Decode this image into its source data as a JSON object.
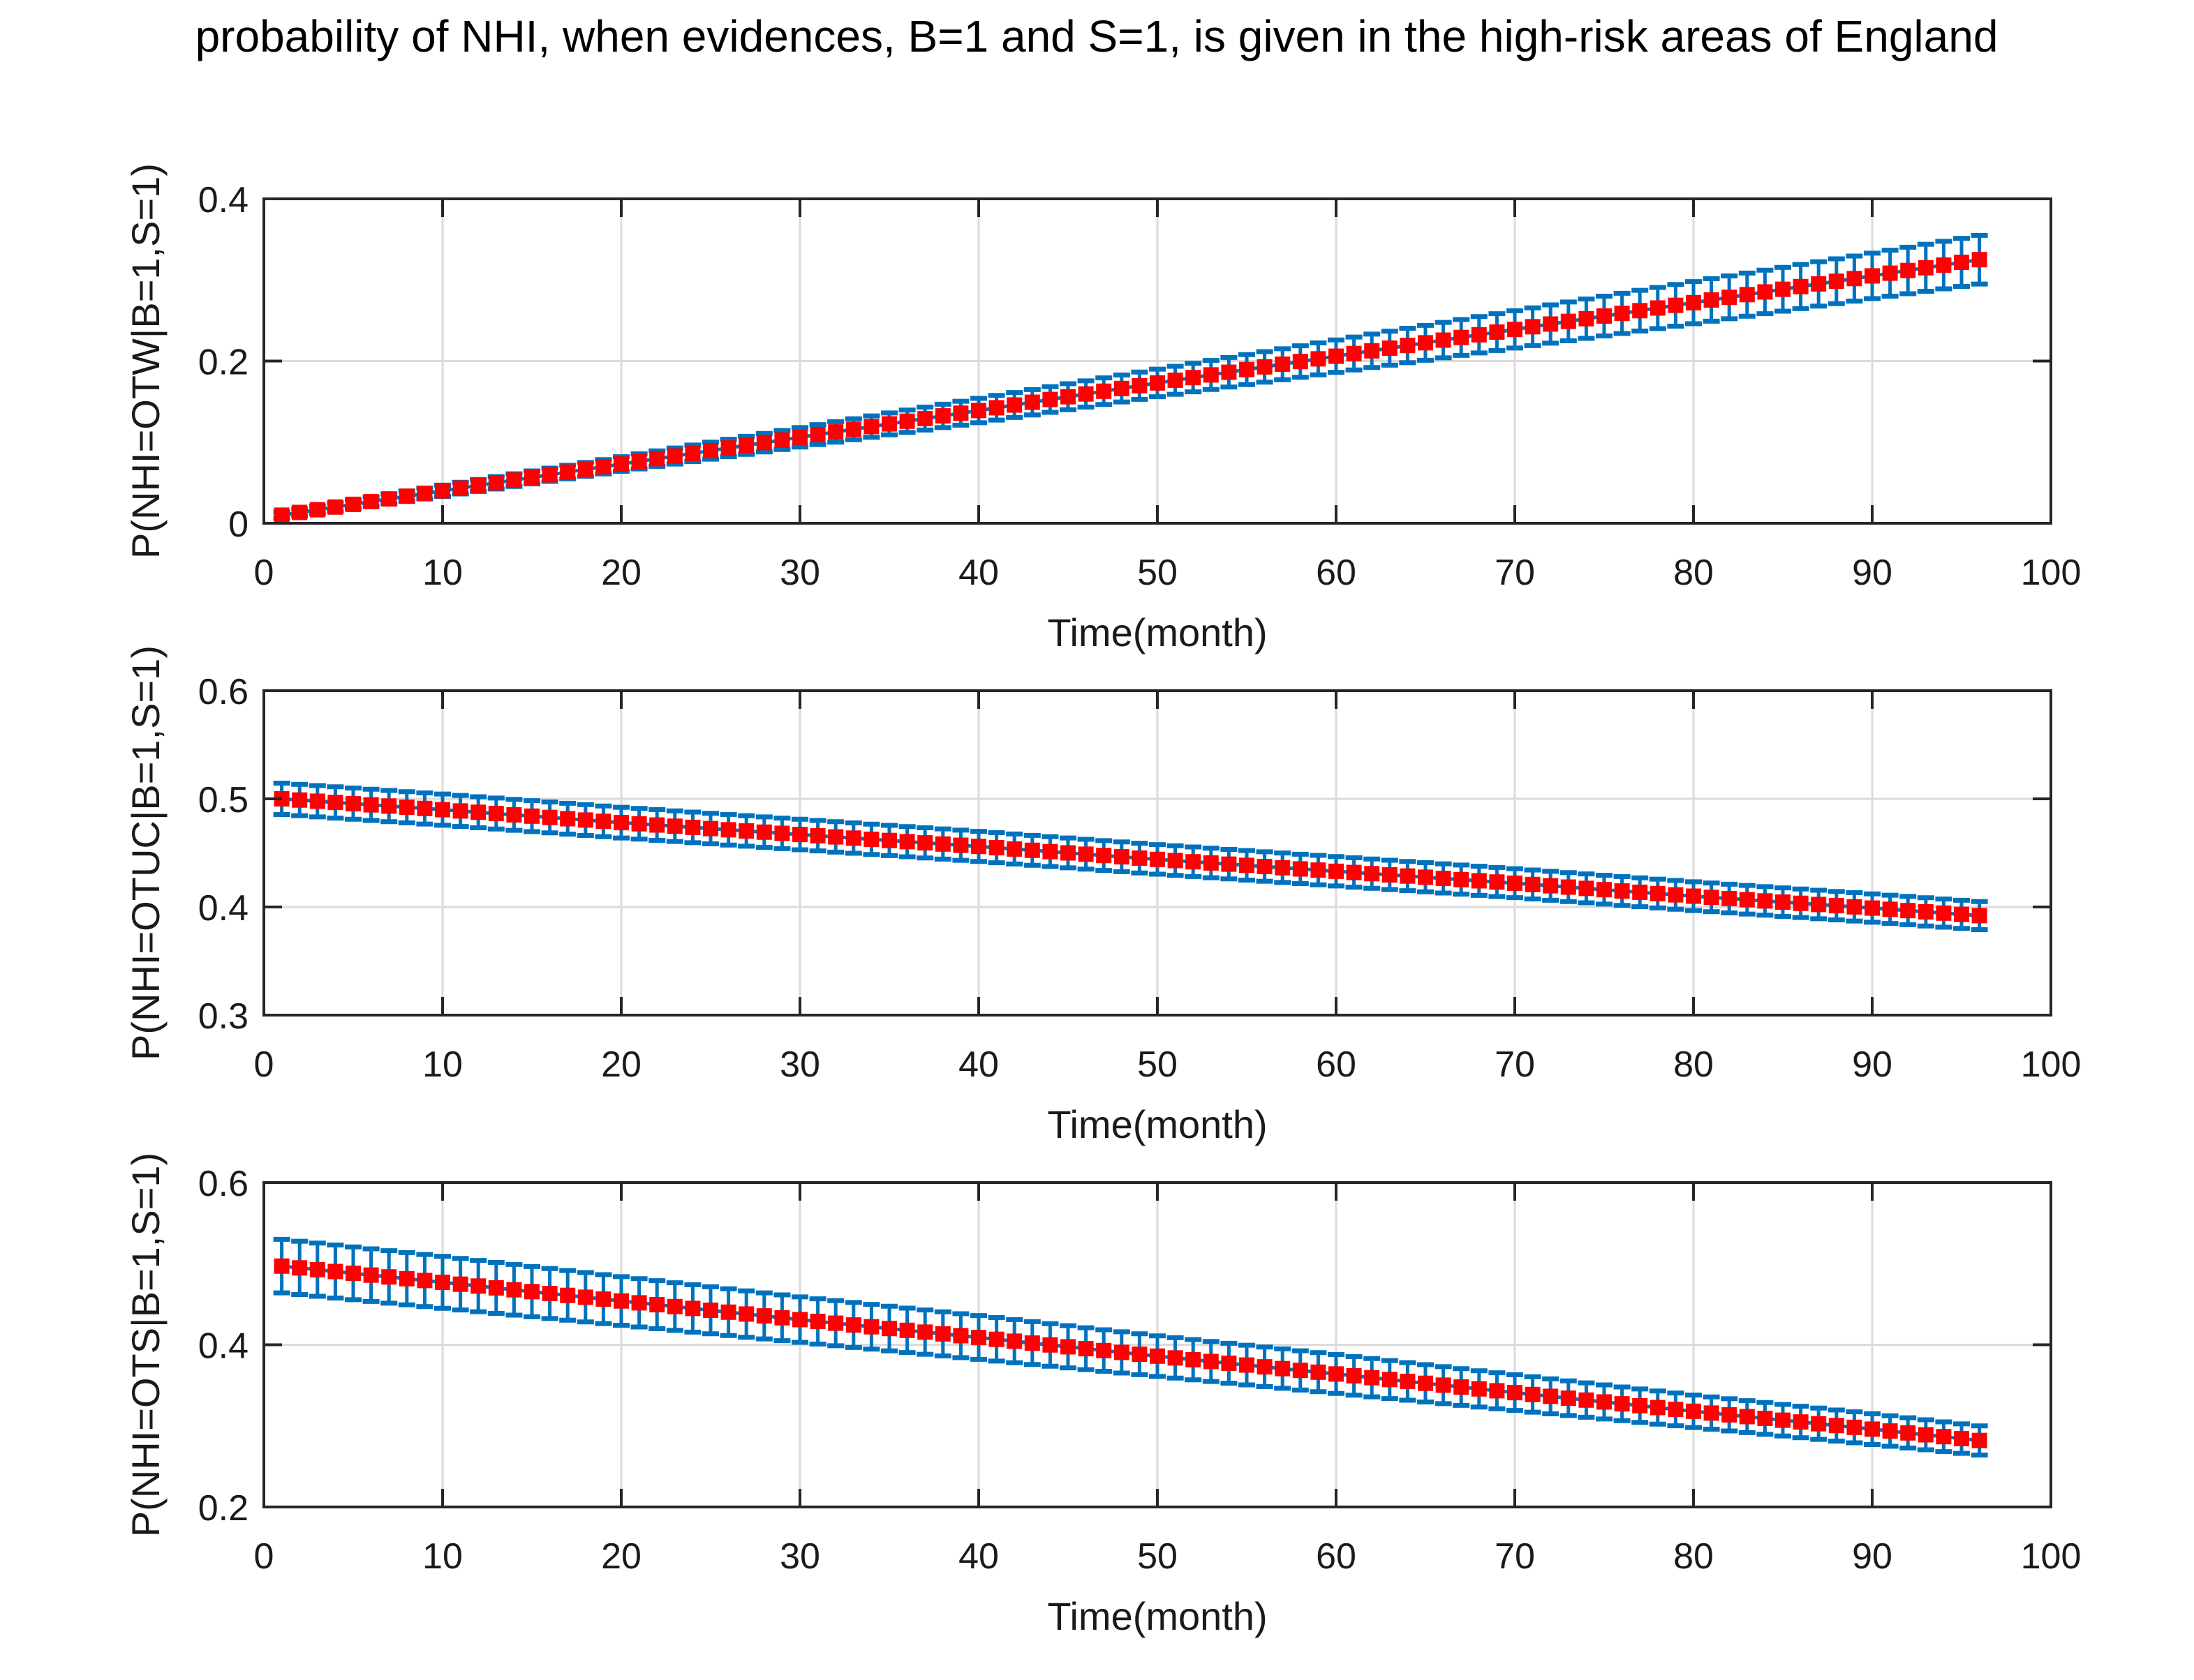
{
  "figure": {
    "title": "probability of NHI, when evidences, B=1 and S=1, is given in the high-risk areas of England",
    "colors": {
      "errorbar_blue": "#0072BD",
      "marker_red": "#FF0000",
      "grid": "#DBDBDB",
      "axis": "#262626",
      "text": "#1A1A1A",
      "background": "#FFFFFF"
    }
  },
  "chart_data": [
    {
      "type": "line",
      "subplot": 1,
      "ylabel": "P(NHI=OTW|B=1,S=1)",
      "xlabel": "Time(month)",
      "xlim": [
        0,
        100
      ],
      "ylim": [
        0,
        0.4
      ],
      "xticks": [
        0,
        10,
        20,
        30,
        40,
        50,
        60,
        70,
        80,
        90,
        100
      ],
      "xtick_labels": [
        "0",
        "10",
        "20",
        "30",
        "40",
        "50",
        "60",
        "70",
        "80",
        "90",
        "100"
      ],
      "yticks": [
        0,
        0.2,
        0.4
      ],
      "ytick_labels": [
        "0",
        "0.2",
        "0.4"
      ],
      "grid": true,
      "marker": "filled-square",
      "series": [
        {
          "name": "mean probability with error bars",
          "x_start": 1,
          "x_end": 96,
          "x_step": 1,
          "anchor_x": [
            1,
            10,
            20,
            30,
            40,
            50,
            60,
            70,
            80,
            90,
            96
          ],
          "anchor_y": [
            0.01,
            0.04,
            0.073,
            0.106,
            0.139,
            0.173,
            0.206,
            0.239,
            0.272,
            0.305,
            0.325
          ],
          "anchor_err": [
            0.004,
            0.007,
            0.009,
            0.012,
            0.015,
            0.017,
            0.02,
            0.023,
            0.026,
            0.028,
            0.03
          ]
        }
      ]
    },
    {
      "type": "line",
      "subplot": 2,
      "ylabel": "P(NHI=OTUC|B=1,S=1)",
      "xlabel": "Time(month)",
      "xlim": [
        0,
        100
      ],
      "ylim": [
        0.3,
        0.6
      ],
      "xticks": [
        0,
        10,
        20,
        30,
        40,
        50,
        60,
        70,
        80,
        90,
        100
      ],
      "xtick_labels": [
        "0",
        "10",
        "20",
        "30",
        "40",
        "50",
        "60",
        "70",
        "80",
        "90",
        "100"
      ],
      "yticks": [
        0.3,
        0.4,
        0.5,
        0.6
      ],
      "ytick_labels": [
        "0.3",
        "0.4",
        "0.5",
        "0.6"
      ],
      "grid": true,
      "marker": "filled-square",
      "series": [
        {
          "name": "mean probability with error bars",
          "x_start": 1,
          "x_end": 96,
          "x_step": 1,
          "anchor_x": [
            1,
            10,
            20,
            30,
            40,
            50,
            60,
            70,
            80,
            90,
            96
          ],
          "anchor_y": [
            0.5,
            0.49,
            0.478,
            0.467,
            0.456,
            0.444,
            0.433,
            0.422,
            0.41,
            0.399,
            0.392
          ],
          "anchor_err": [
            0.0145,
            0.0144,
            0.0142,
            0.0141,
            0.0139,
            0.0137,
            0.0136,
            0.0134,
            0.0133,
            0.0131,
            0.013
          ]
        }
      ]
    },
    {
      "type": "line",
      "subplot": 3,
      "ylabel": "P(NHI=OTS|B=1,S=1)",
      "xlabel": "Time(month)",
      "xlim": [
        0,
        100
      ],
      "ylim": [
        0.2,
        0.6
      ],
      "xticks": [
        0,
        10,
        20,
        30,
        40,
        50,
        60,
        70,
        80,
        90,
        100
      ],
      "xtick_labels": [
        "0",
        "10",
        "20",
        "30",
        "40",
        "50",
        "60",
        "70",
        "80",
        "90",
        "100"
      ],
      "yticks": [
        0.2,
        0.4,
        0.6
      ],
      "ytick_labels": [
        "0.2",
        "0.4",
        "0.6"
      ],
      "grid": true,
      "marker": "filled-square",
      "series": [
        {
          "name": "mean probability with error bars",
          "x_start": 1,
          "x_end": 96,
          "x_step": 1,
          "anchor_x": [
            1,
            10,
            20,
            30,
            40,
            50,
            60,
            70,
            80,
            90,
            96
          ],
          "anchor_y": [
            0.497,
            0.477,
            0.454,
            0.431,
            0.409,
            0.386,
            0.364,
            0.341,
            0.318,
            0.296,
            0.282
          ],
          "anchor_err": [
            0.033,
            0.032,
            0.03,
            0.028,
            0.027,
            0.025,
            0.024,
            0.022,
            0.02,
            0.019,
            0.018
          ]
        }
      ]
    }
  ]
}
